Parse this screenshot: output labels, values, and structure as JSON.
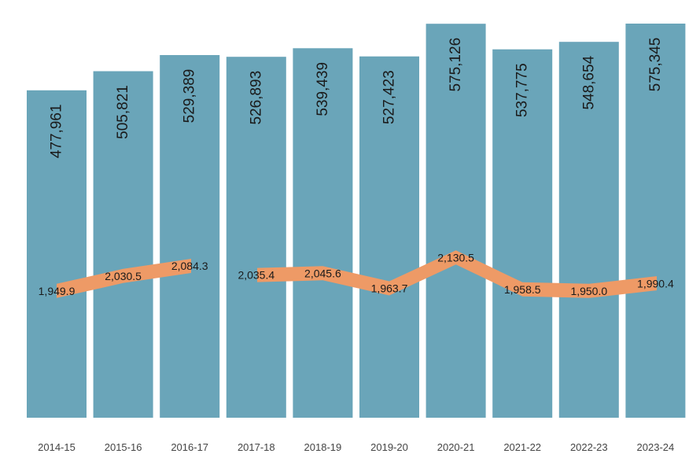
{
  "chart_data": {
    "type": "bar",
    "categories": [
      "2014-15",
      "2015-16",
      "2016-17",
      "2017-18",
      "2018-19",
      "2019-20",
      "2020-21",
      "2021-22",
      "2022-23",
      "2023-24"
    ],
    "series": [
      {
        "type": "bar",
        "values": [
          477961,
          505821,
          529389,
          526893,
          539439,
          527423,
          575126,
          537775,
          548654,
          575345
        ],
        "labels": [
          "477,961",
          "505,821",
          "529,389",
          "526,893",
          "539,439",
          "527,423",
          "575,126",
          "537,775",
          "548,654",
          "575,345"
        ],
        "color": "#6aa5b9"
      },
      {
        "type": "line",
        "values": [
          1949.9,
          2030.5,
          2084.3,
          2035.4,
          2045.6,
          1963.7,
          2130.5,
          1958.5,
          1950.0,
          1990.4
        ],
        "labels": [
          "1,949.9",
          "2,030.5",
          "2,084.3",
          "2,035.4",
          "2,045.6",
          "1,963.7",
          "2,130.5",
          "1,958.5",
          "1,950.0",
          "1,990.4"
        ],
        "color": "#ee9a66"
      }
    ],
    "title": "",
    "xlabel": "",
    "ylabel": "",
    "ylim": [
      0,
      575345
    ],
    "grid": false,
    "legend": "none"
  }
}
